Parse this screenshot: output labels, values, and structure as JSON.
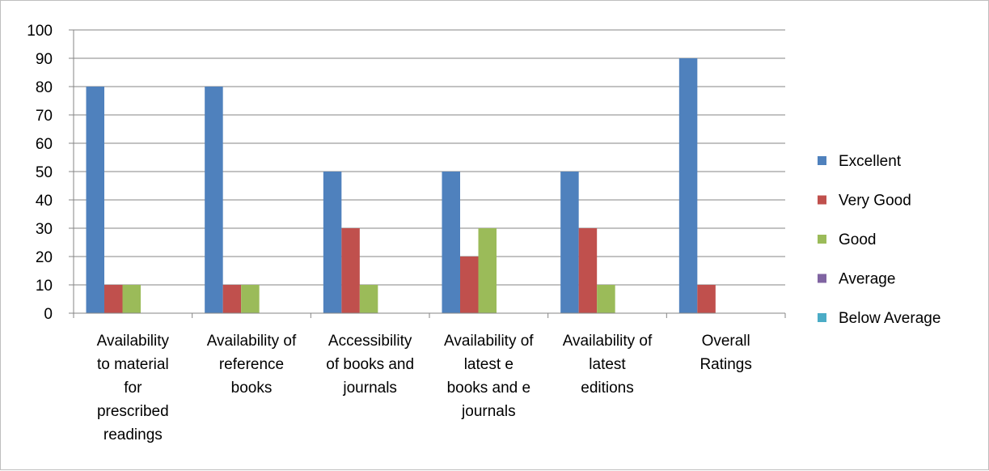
{
  "chart_data": {
    "type": "bar",
    "title": "",
    "xlabel": "",
    "ylabel": "",
    "ylim": [
      0,
      100
    ],
    "yticks": [
      0,
      10,
      20,
      30,
      40,
      50,
      60,
      70,
      80,
      90,
      100
    ],
    "grid": true,
    "legend_position": "right",
    "categories": [
      "Availability to material for prescribed readings",
      "Availability of reference books",
      "Accessibility of books and journals",
      "Availability of latest e books and e journals",
      "Availability of latest editions",
      "Overall Ratings"
    ],
    "category_lines": [
      [
        "Availability",
        "to material",
        "for",
        "prescribed",
        "readings"
      ],
      [
        "Availability of",
        "reference",
        "books"
      ],
      [
        "Accessibility",
        "of books and",
        "journals"
      ],
      [
        "Availability of",
        "latest e",
        "books and e",
        "journals"
      ],
      [
        "Availability of",
        "latest",
        "editions"
      ],
      [
        "Overall",
        "Ratings"
      ]
    ],
    "series": [
      {
        "name": "Excellent",
        "color": "#4f81bd",
        "values": [
          80,
          80,
          50,
          50,
          50,
          90
        ]
      },
      {
        "name": "Very Good",
        "color": "#c0504d",
        "values": [
          10,
          10,
          30,
          20,
          30,
          10
        ]
      },
      {
        "name": "Good",
        "color": "#9bbb59",
        "values": [
          10,
          10,
          10,
          30,
          10,
          0
        ]
      },
      {
        "name": "Average",
        "color": "#8064a2",
        "values": [
          0,
          0,
          0,
          0,
          0,
          0
        ]
      },
      {
        "name": "Below Average",
        "color": "#4bacc6",
        "values": [
          0,
          0,
          0,
          0,
          0,
          0
        ]
      }
    ]
  }
}
